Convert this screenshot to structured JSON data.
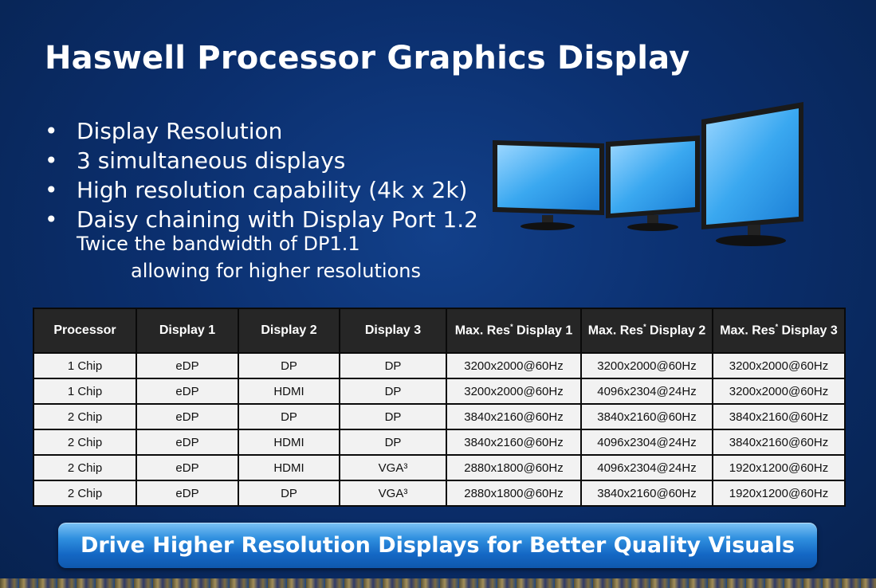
{
  "slide": {
    "title": "Haswell Processor Graphics Display",
    "bullets": [
      "Display Resolution",
      "3 simultaneous displays",
      "High resolution capability (4k x 2k)",
      "Daisy chaining with Display Port 1.2"
    ],
    "bullet_glyph": "•",
    "sub_line_1": "Twice the bandwidth of DP1.1",
    "sub_line_2": "allowing for higher resolutions",
    "banner": "Drive Higher Resolution Displays for Better Quality Visuals"
  },
  "table": {
    "headers": [
      "Processor",
      "Display 1",
      "Display 2",
      "Display 3",
      "Max. Res",
      "Max. Res",
      "Max. Res"
    ],
    "header_suffix": [
      " Display 1",
      " Display 2",
      " Display 3"
    ],
    "header_sup": "*",
    "rows": [
      [
        "1 Chip",
        "eDP",
        "DP",
        "DP",
        "3200x2000@60Hz",
        "3200x2000@60Hz",
        "3200x2000@60Hz"
      ],
      [
        "1 Chip",
        "eDP",
        "HDMI",
        "DP",
        "3200x2000@60Hz",
        "4096x2304@24Hz",
        "3200x2000@60Hz"
      ],
      [
        "2 Chip",
        "eDP",
        "DP",
        "DP",
        "3840x2160@60Hz",
        "3840x2160@60Hz",
        "3840x2160@60Hz"
      ],
      [
        "2 Chip",
        "eDP",
        "HDMI",
        "DP",
        "3840x2160@60Hz",
        "4096x2304@24Hz",
        "3840x2160@60Hz"
      ],
      [
        "2 Chip",
        "eDP",
        "HDMI",
        "VGA³",
        "2880x1800@60Hz",
        "4096x2304@24Hz",
        "1920x1200@60Hz"
      ],
      [
        "2 Chip",
        "eDP",
        "DP",
        "VGA³",
        "2880x1800@60Hz",
        "3840x2160@60Hz",
        "1920x1200@60Hz"
      ]
    ]
  },
  "illustration": {
    "icon": "three-monitors-icon",
    "screen_color": "#3aa8f0"
  }
}
